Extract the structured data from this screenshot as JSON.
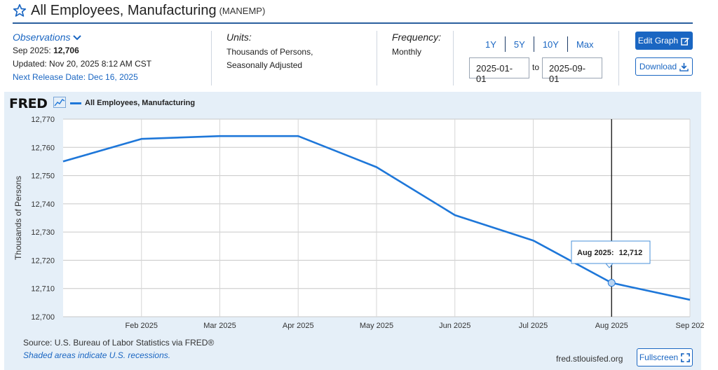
{
  "header": {
    "title": "All Employees, Manufacturing",
    "series_id": "(MANEMP)"
  },
  "observations": {
    "heading": "Observations",
    "latest_period": "Sep 2025:",
    "latest_value": "12,706",
    "updated": "Updated: Nov 20, 2025 8:12 AM CST",
    "next_release": "Next Release Date: Dec 16, 2025"
  },
  "units": {
    "heading": "Units:",
    "line1": "Thousands of Persons,",
    "line2": "Seasonally Adjusted"
  },
  "frequency": {
    "heading": "Frequency:",
    "value": "Monthly"
  },
  "range": {
    "buttons": [
      "1Y",
      "5Y",
      "10Y",
      "Max"
    ],
    "start": "2025-01-01",
    "to_label": "to",
    "end": "2025-09-01"
  },
  "actions": {
    "edit_graph": "Edit Graph",
    "download": "Download",
    "fullscreen": "Fullscreen"
  },
  "chart_panel": {
    "logo": "FRED",
    "legend_label": "All Employees, Manufacturing",
    "source": "Source: U.S. Bureau of Labor Statistics via FRED®",
    "recession_note": "Shaded areas indicate U.S. recessions.",
    "url": "fred.stlouisfed.org"
  },
  "colors": {
    "line": "#1e77d9",
    "accent": "#1a66c2"
  },
  "chart_data": {
    "type": "line",
    "title": "All Employees, Manufacturing",
    "ylabel": "Thousands of Persons",
    "xlabel": "",
    "ylim": [
      12700,
      12770
    ],
    "yticks": [
      12700,
      12710,
      12720,
      12730,
      12740,
      12750,
      12760,
      12770
    ],
    "ytick_labels": [
      "12,700",
      "12,710",
      "12,720",
      "12,730",
      "12,740",
      "12,750",
      "12,760",
      "12,770"
    ],
    "x": [
      "Jan 2025",
      "Feb 2025",
      "Mar 2025",
      "Apr 2025",
      "May 2025",
      "Jun 2025",
      "Jul 2025",
      "Aug 2025",
      "Sep 2025"
    ],
    "xtick_labels": [
      "Feb 2025",
      "Mar 2025",
      "Apr 2025",
      "May 2025",
      "Jun 2025",
      "Jul 2025",
      "Aug 2025",
      "Sep 202"
    ],
    "series": [
      {
        "name": "All Employees, Manufacturing",
        "values": [
          12755,
          12763,
          12764,
          12764,
          12753,
          12736,
          12727,
          12712,
          12706
        ]
      }
    ],
    "grid": true,
    "legend": "top-left",
    "tooltip": {
      "label": "Aug 2025:",
      "value": "12,712",
      "index": 7
    }
  }
}
